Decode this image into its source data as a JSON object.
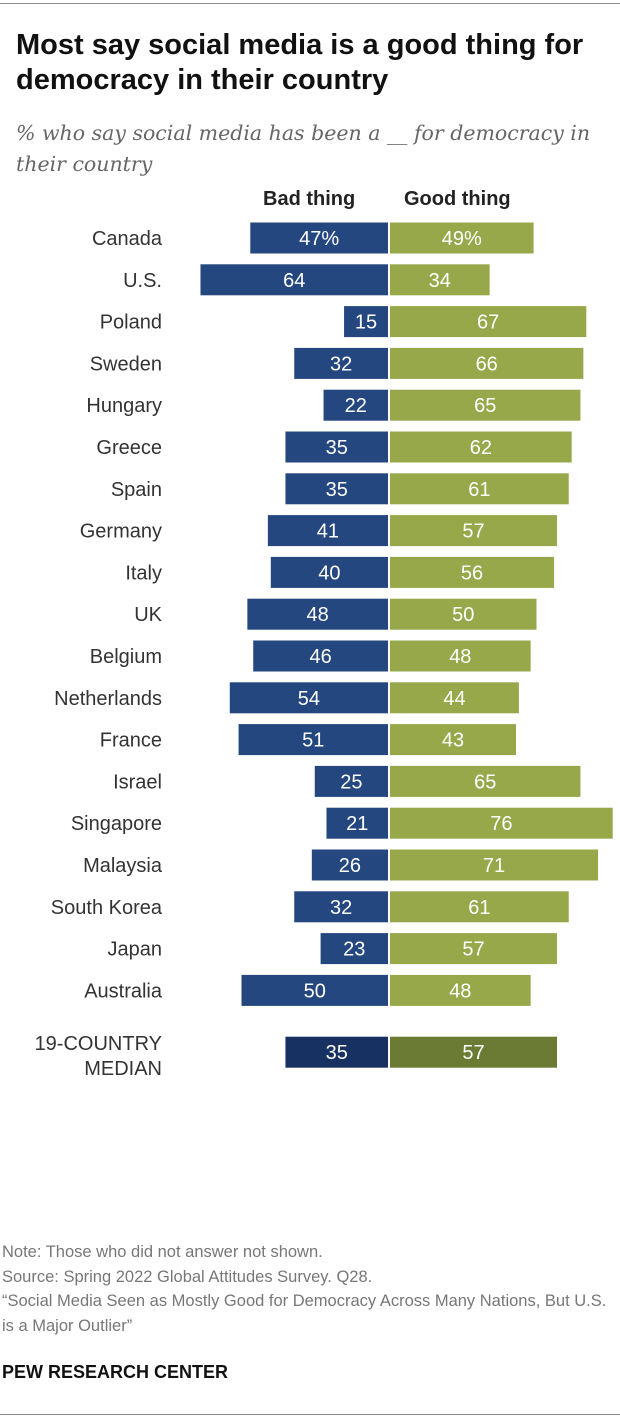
{
  "header": {
    "title": "Most say social media is a good thing for democracy in their country",
    "subtitle": "% who say social media has been a __ for democracy in their country"
  },
  "columns": {
    "bad": "Bad thing",
    "good": "Good thing"
  },
  "colors": {
    "bad": "#23477e",
    "good": "#97a84b",
    "median_bad": "#173262",
    "median_good": "#6b7b33"
  },
  "chart_data": {
    "type": "bar",
    "orientation": "horizontal-diverging",
    "series": [
      {
        "name": "Bad thing",
        "side": "left"
      },
      {
        "name": "Good thing",
        "side": "right"
      }
    ],
    "groups": [
      {
        "rows": [
          {
            "country": "Canada",
            "bad": 47,
            "good": 49,
            "bad_label": "47%",
            "good_label": "49%"
          },
          {
            "country": "U.S.",
            "bad": 64,
            "good": 34,
            "bad_label": "64",
            "good_label": "34"
          }
        ]
      },
      {
        "rows": [
          {
            "country": "Poland",
            "bad": 15,
            "good": 67,
            "bad_label": "15",
            "good_label": "67"
          },
          {
            "country": "Sweden",
            "bad": 32,
            "good": 66,
            "bad_label": "32",
            "good_label": "66"
          },
          {
            "country": "Hungary",
            "bad": 22,
            "good": 65,
            "bad_label": "22",
            "good_label": "65"
          },
          {
            "country": "Greece",
            "bad": 35,
            "good": 62,
            "bad_label": "35",
            "good_label": "62"
          },
          {
            "country": "Spain",
            "bad": 35,
            "good": 61,
            "bad_label": "35",
            "good_label": "61"
          },
          {
            "country": "Germany",
            "bad": 41,
            "good": 57,
            "bad_label": "41",
            "good_label": "57"
          },
          {
            "country": "Italy",
            "bad": 40,
            "good": 56,
            "bad_label": "40",
            "good_label": "56"
          },
          {
            "country": "UK",
            "bad": 48,
            "good": 50,
            "bad_label": "48",
            "good_label": "50"
          },
          {
            "country": "Belgium",
            "bad": 46,
            "good": 48,
            "bad_label": "46",
            "good_label": "48"
          },
          {
            "country": "Netherlands",
            "bad": 54,
            "good": 44,
            "bad_label": "54",
            "good_label": "44"
          },
          {
            "country": "France",
            "bad": 51,
            "good": 43,
            "bad_label": "51",
            "good_label": "43"
          }
        ]
      },
      {
        "rows": [
          {
            "country": "Israel",
            "bad": 25,
            "good": 65,
            "bad_label": "25",
            "good_label": "65"
          }
        ]
      },
      {
        "rows": [
          {
            "country": "Singapore",
            "bad": 21,
            "good": 76,
            "bad_label": "21",
            "good_label": "76"
          },
          {
            "country": "Malaysia",
            "bad": 26,
            "good": 71,
            "bad_label": "26",
            "good_label": "71"
          },
          {
            "country": "South Korea",
            "bad": 32,
            "good": 61,
            "bad_label": "32",
            "good_label": "61"
          },
          {
            "country": "Japan",
            "bad": 23,
            "good": 57,
            "bad_label": "23",
            "good_label": "57"
          },
          {
            "country": "Australia",
            "bad": 50,
            "good": 48,
            "bad_label": "50",
            "good_label": "48"
          }
        ]
      },
      {
        "median": true,
        "rows": [
          {
            "country_lines": [
              "19-COUNTRY",
              "MEDIAN"
            ],
            "bad": 35,
            "good": 57,
            "bad_label": "35",
            "good_label": "57"
          }
        ]
      }
    ]
  },
  "footer": {
    "note": "Note: Those who did not answer not shown.",
    "source": "Source: Spring 2022 Global Attitudes Survey. Q28.",
    "report": "“Social Media Seen as Mostly Good for Democracy Across Many Nations, But U.S. is a Major Outlier”",
    "brand": "PEW RESEARCH CENTER"
  }
}
